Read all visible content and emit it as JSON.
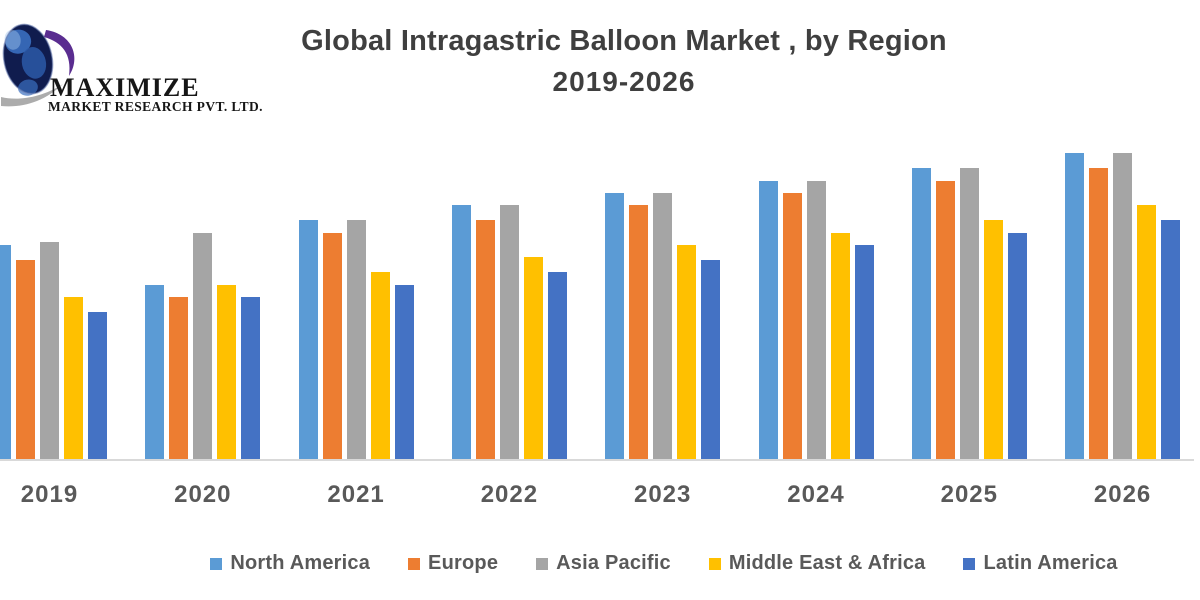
{
  "logo": {
    "name": "MAXIMIZE",
    "subname": "MARKET RESEARCH PVT. LTD."
  },
  "title": "Global Intragastric Balloon Market , by Region",
  "subtitle": "2019-2026",
  "chart_data": {
    "type": "bar",
    "title": "Global Intragastric Balloon Market , by Region",
    "subtitle": "2019-2026",
    "categories": [
      "2019",
      "2020",
      "2021",
      "2022",
      "2023",
      "2024",
      "2025",
      "2026"
    ],
    "series": [
      {
        "name": "North America",
        "color": "#5B9BD5",
        "values": [
          70,
          57,
          78,
          83,
          87,
          91,
          95,
          100
        ]
      },
      {
        "name": "Europe",
        "color": "#ED7D31",
        "values": [
          65,
          53,
          74,
          78,
          83,
          87,
          91,
          95
        ]
      },
      {
        "name": "Asia Pacific",
        "color": "#A5A5A5",
        "values": [
          71,
          74,
          78,
          83,
          87,
          91,
          95,
          100
        ]
      },
      {
        "name": "Middle East & Africa",
        "color": "#FFC000",
        "values": [
          53,
          57,
          61,
          66,
          70,
          74,
          78,
          83
        ]
      },
      {
        "name": "Latin America",
        "color": "#4472C4",
        "values": [
          48,
          53,
          57,
          61,
          65,
          70,
          74,
          78
        ]
      }
    ],
    "xlabel": "",
    "ylabel": "",
    "ylim": [
      0,
      100
    ],
    "values_unit": "relative index estimated from bar heights (chart shows no y-axis)",
    "grid": false,
    "legend_position": "bottom"
  },
  "colors": {
    "axis_line": "#d9d9d9",
    "title_text": "#3f3f3f",
    "label_text": "#595959",
    "logo_globe": "#101c4e",
    "logo_swoosh": "#5a2d90"
  }
}
